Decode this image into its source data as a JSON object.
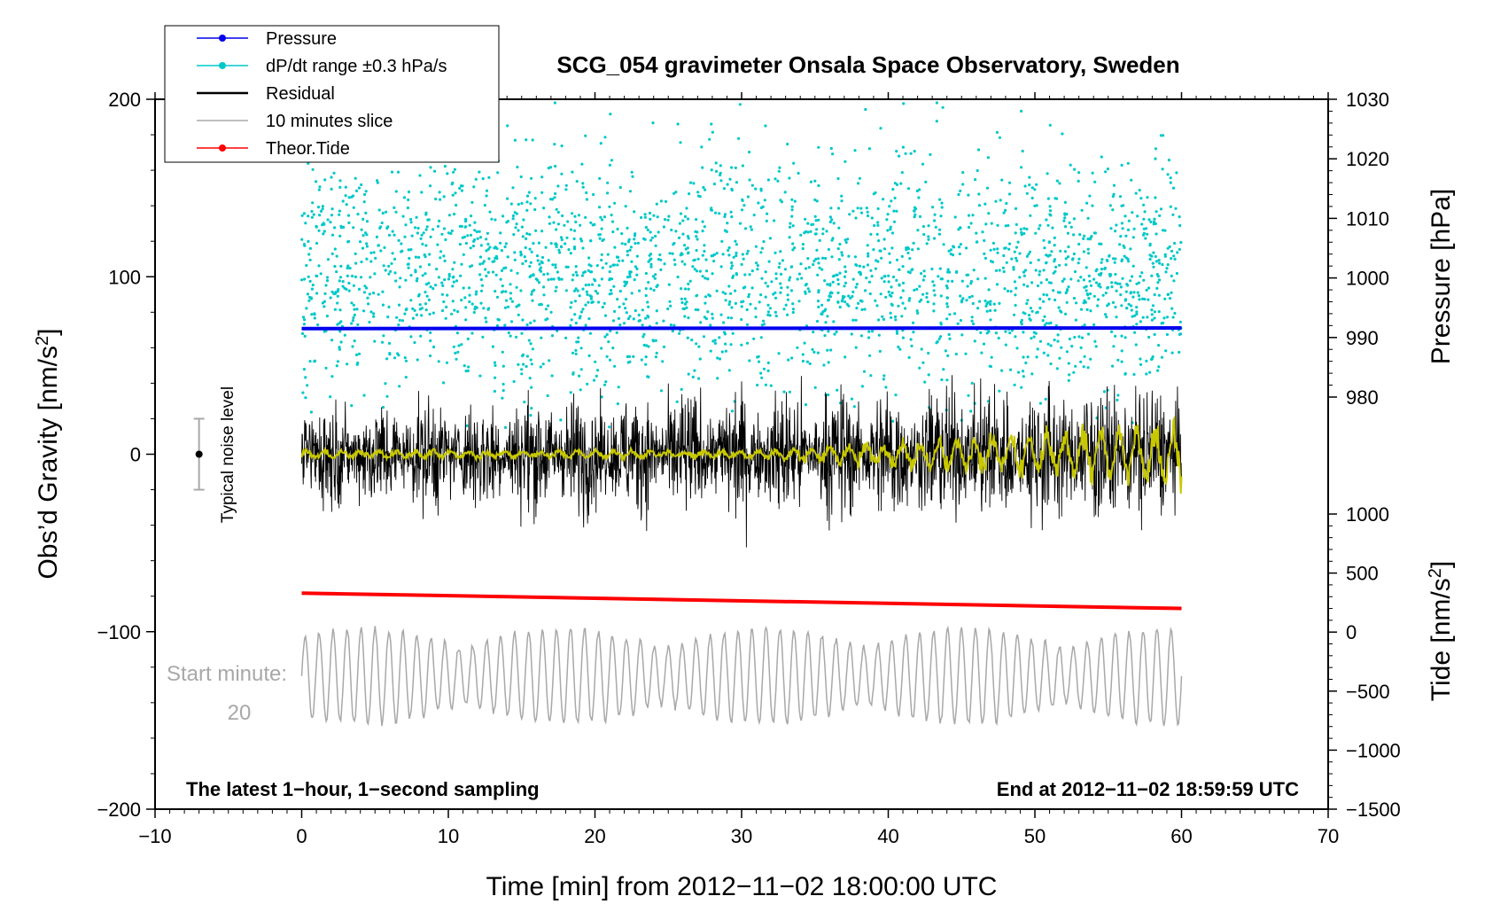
{
  "chart_data": {
    "type": "line",
    "title": "SCG_054 gravimeter Onsala Space Observatory, Sweden",
    "xlabel": "Time [min] from 2012−11−02 18:00:00 UTC",
    "ylabel_left": "Obs’d Gravity [nm/s",
    "ylabel_left_sup": "2",
    "ylabel_left_end": "]",
    "ylabel_right_pressure": "Pressure [hPa]",
    "ylabel_right_tide": "Tide [nm/s",
    "ylabel_right_tide_sup": "2",
    "ylabel_right_tide_end": "]",
    "xlim": [
      -10,
      70
    ],
    "ylim_left": [
      -200,
      200
    ],
    "pressure_range": [
      980,
      1030
    ],
    "tide_range": [
      -1500,
      1000
    ],
    "x_ticks": [
      {
        "value": -10,
        "label": "−10"
      },
      {
        "value": 0,
        "label": "0"
      },
      {
        "value": 10,
        "label": "10"
      },
      {
        "value": 20,
        "label": "20"
      },
      {
        "value": 30,
        "label": "30"
      },
      {
        "value": 40,
        "label": "40"
      },
      {
        "value": 50,
        "label": "50"
      },
      {
        "value": 60,
        "label": "60"
      },
      {
        "value": 70,
        "label": "70"
      }
    ],
    "left_ticks": [
      {
        "value": 200,
        "label": "200"
      },
      {
        "value": 100,
        "label": "100"
      },
      {
        "value": 0,
        "label": "0"
      },
      {
        "value": -100,
        "label": "−100"
      },
      {
        "value": -200,
        "label": "−200"
      }
    ],
    "pressure_ticks": [
      {
        "value": 1030,
        "label": "1030"
      },
      {
        "value": 1020,
        "label": "1020"
      },
      {
        "value": 1010,
        "label": "1010"
      },
      {
        "value": 1000,
        "label": "1000"
      },
      {
        "value": 990,
        "label": "990"
      },
      {
        "value": 980,
        "label": "980"
      }
    ],
    "tide_ticks": [
      {
        "value": 1000,
        "label": "1000"
      },
      {
        "value": 500,
        "label": "500"
      },
      {
        "value": 0,
        "label": "0"
      },
      {
        "value": -500,
        "label": "−500"
      },
      {
        "value": -1000,
        "label": "−1000"
      },
      {
        "value": -1500,
        "label": "−1500"
      }
    ],
    "legend": {
      "placement": "top-left",
      "entries": [
        {
          "label": "Pressure",
          "color": "#0000ee",
          "marker": true
        },
        {
          "label": "dP/dt range ±0.3 hPa/s",
          "color": "#00c8c8",
          "marker": true
        },
        {
          "label": "Residual",
          "color": "#000000",
          "marker": false
        },
        {
          "label": "10 minutes slice",
          "color": "#a8a8a8",
          "marker": false
        },
        {
          "label": "Theor.Tide",
          "color": "#ff0000",
          "marker": true
        }
      ]
    },
    "series": [
      {
        "name": "Pressure",
        "axis": "pressure",
        "color": "#0000ee",
        "x": [
          0,
          60
        ],
        "values": [
          991.5,
          991.6
        ]
      },
      {
        "name": "Theor.Tide",
        "axis": "tide",
        "color": "#ff0000",
        "x": [
          0,
          60
        ],
        "values": [
          330,
          200
        ]
      },
      {
        "name": "dP/dt range ±0.3 hPa/s",
        "axis": "left",
        "color": "#00c8c8",
        "x_range": [
          0,
          60
        ],
        "center": 103,
        "spread": 95
      },
      {
        "name": "Residual",
        "axis": "left",
        "color": "#000000",
        "x_range": [
          0,
          60
        ],
        "amplitude_start": 25,
        "amplitude_end": 35,
        "min": -82,
        "max": 86
      },
      {
        "name": "Filtered residual",
        "axis": "left",
        "color": "#c8c800",
        "x_range": [
          0,
          60
        ],
        "amplitude_start": 2,
        "amplitude_end": 18
      },
      {
        "name": "10 minutes slice",
        "axis": "left",
        "color": "#a8a8a8",
        "x_range": [
          0,
          60
        ],
        "center": -125,
        "amplitude": 25
      }
    ],
    "annotations": {
      "noise_label": "Typical noise level",
      "noise_center": 0,
      "noise_half_range": 20,
      "noise_x": -7,
      "start_label": "Start minute:",
      "start_value": "20",
      "bottom_left": "The latest 1−hour, 1−second sampling",
      "bottom_right": "End at 2012−11−02 18:59:59 UTC"
    }
  }
}
